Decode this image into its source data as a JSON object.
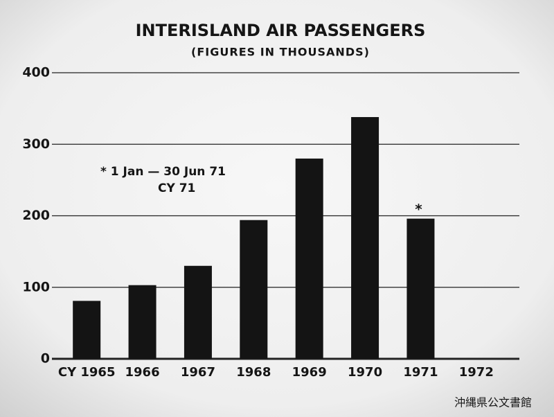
{
  "chart_data": {
    "type": "bar",
    "title": "INTERISLAND AIR PASSENGERS",
    "subtitle": "(FIGURES IN THOUSANDS)",
    "categories": [
      "CY 1965",
      "1966",
      "1967",
      "1968",
      "1969",
      "1970",
      "1971",
      "1972"
    ],
    "values": [
      81,
      103,
      130,
      194,
      280,
      338,
      196,
      null
    ],
    "color": "#141414",
    "ylim": [
      0,
      400
    ],
    "yticks": [
      0,
      100,
      200,
      300,
      400
    ],
    "grid": true,
    "annotation": "*",
    "note": [
      "* 1 Jan — 30 Jun 71",
      "CY 71"
    ],
    "watermark": "沖縄県公文書館"
  }
}
